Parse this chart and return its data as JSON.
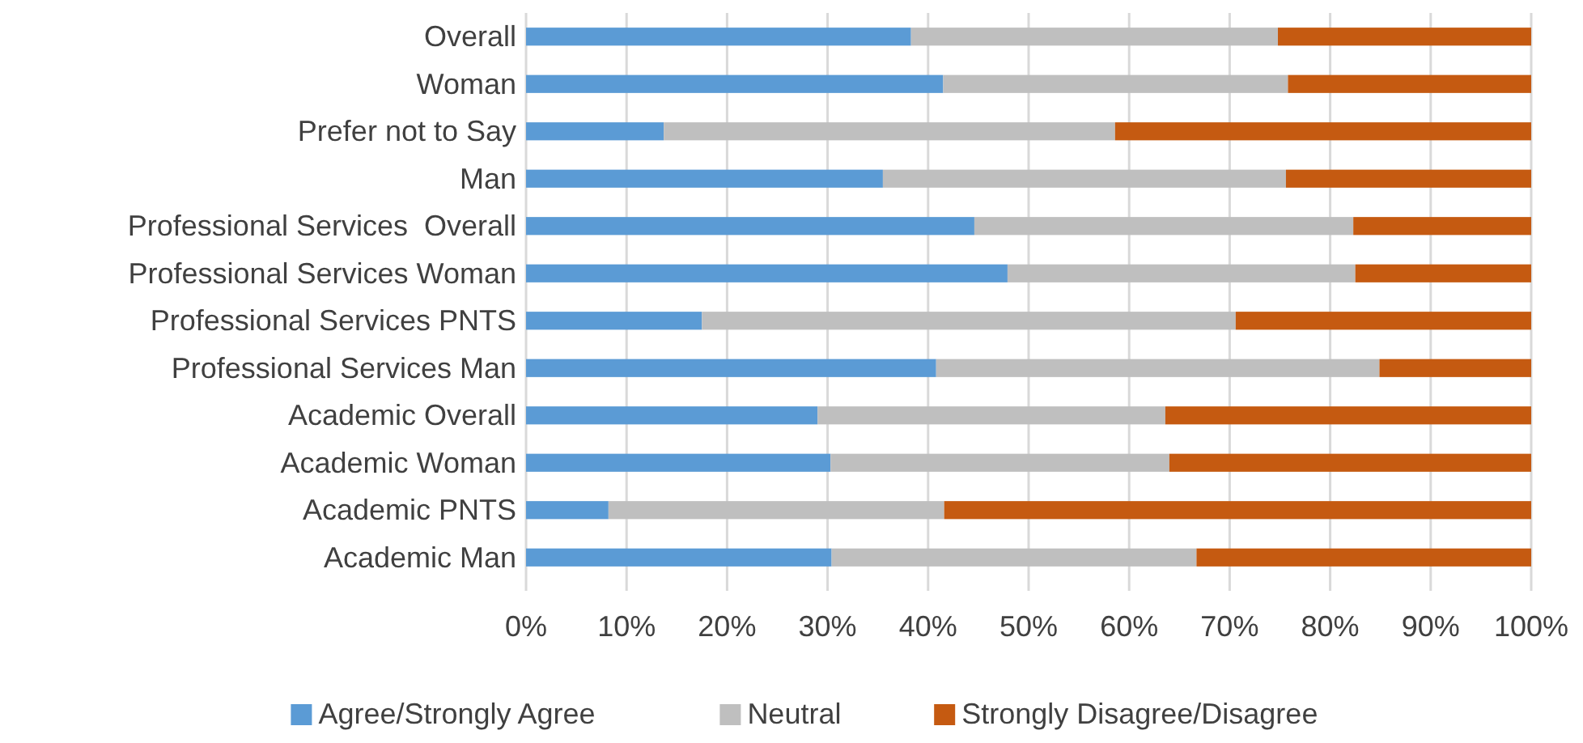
{
  "chart_data": {
    "type": "bar",
    "orientation": "horizontal",
    "stacked": true,
    "categories": [
      "Overall",
      "Woman",
      "Prefer not to Say",
      "Man",
      "Professional Services  Overall",
      "Professional Services Woman",
      "Professional Services PNTS",
      "Professional Services Man",
      "Academic Overall",
      "Academic Woman",
      "Academic PNTS",
      "Academic Man"
    ],
    "series": [
      {
        "name": "Agree/Strongly Agree",
        "color": "#5b9bd5",
        "values": [
          38.3,
          41.5,
          13.7,
          35.5,
          44.6,
          47.9,
          17.5,
          40.8,
          29.0,
          30.3,
          8.2,
          30.4
        ]
      },
      {
        "name": "Neutral",
        "color": "#bfbfbf",
        "values": [
          36.5,
          34.3,
          44.9,
          40.1,
          37.7,
          34.6,
          53.1,
          44.1,
          34.6,
          33.7,
          33.4,
          36.3
        ]
      },
      {
        "name": "Strongly Disagree/Disagree",
        "color": "#c55a11",
        "values": [
          25.2,
          24.2,
          41.4,
          24.4,
          17.7,
          17.5,
          29.4,
          15.1,
          36.4,
          36.0,
          58.4,
          33.3
        ]
      }
    ],
    "xlim": [
      0,
      100
    ],
    "xticks": [
      {
        "value": 0,
        "label": "0%"
      },
      {
        "value": 10,
        "label": "10%"
      },
      {
        "value": 20,
        "label": "20%"
      },
      {
        "value": 30,
        "label": "30%"
      },
      {
        "value": 40,
        "label": "40%"
      },
      {
        "value": 50,
        "label": "50%"
      },
      {
        "value": 60,
        "label": "60%"
      },
      {
        "value": 70,
        "label": "70%"
      },
      {
        "value": 80,
        "label": "80%"
      },
      {
        "value": 90,
        "label": "90%"
      },
      {
        "value": 100,
        "label": "100%"
      }
    ],
    "grid": "x",
    "legend": "bottom"
  }
}
